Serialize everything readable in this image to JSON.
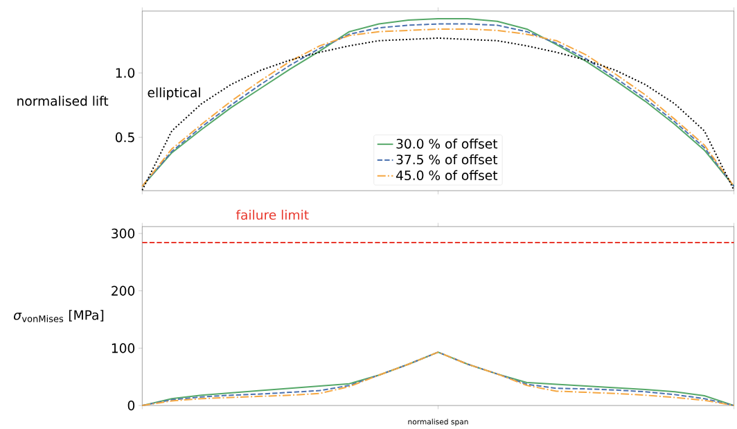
{
  "chart_data": [
    {
      "type": "line",
      "ylabel": "normalised lift",
      "ylim": [
        0.086,
        1.48
      ],
      "yticks": [
        {
          "value": 0.5,
          "label": "0.5"
        },
        {
          "value": 1,
          "label": "1.0"
        }
      ],
      "tick_labels": "y",
      "legend": "bottom",
      "categories": [
        null,
        null,
        null,
        null,
        null,
        null,
        null,
        null,
        null,
        null,
        null,
        null,
        null,
        null,
        null,
        null,
        null,
        null,
        null,
        null,
        null
      ],
      "annotations": [
        "elliptical"
      ],
      "series": [
        {
          "name": "30.0 % of offset",
          "color": "#55a868",
          "line_style": "solid",
          "values": [
            0.12,
            0.38,
            0.56,
            0.73,
            0.88,
            1.03,
            1.17,
            1.32,
            1.38,
            1.41,
            1.42,
            1.42,
            1.4,
            1.34,
            1.22,
            1.09,
            0.94,
            0.78,
            0.6,
            0.4,
            0.12
          ]
        },
        {
          "name": "37.5 % of offset",
          "color": "#4c72b0",
          "line_style": "dashed",
          "values": [
            0.12,
            0.39,
            0.58,
            0.75,
            0.91,
            1.06,
            1.19,
            1.3,
            1.35,
            1.37,
            1.38,
            1.38,
            1.37,
            1.32,
            1.23,
            1.11,
            0.96,
            0.8,
            0.62,
            0.42,
            0.12
          ]
        },
        {
          "name": "45.0 % of offset",
          "color": "#f5a742",
          "line_style": "dashdot",
          "values": [
            0.12,
            0.41,
            0.6,
            0.78,
            0.94,
            1.09,
            1.21,
            1.29,
            1.32,
            1.33,
            1.34,
            1.34,
            1.33,
            1.3,
            1.25,
            1.14,
            0.99,
            0.83,
            0.64,
            0.44,
            0.12
          ]
        },
        {
          "color": "#000000",
          "line_style": "dotted",
          "values": [
            0.09,
            0.55,
            0.76,
            0.91,
            1.02,
            1.1,
            1.16,
            1.21,
            1.25,
            1.26,
            1.27,
            1.26,
            1.25,
            1.21,
            1.16,
            1.1,
            1.02,
            0.91,
            0.76,
            0.55,
            0.09
          ]
        }
      ]
    },
    {
      "type": "line",
      "ylabel": "*σ*$_{vonMises}$ [MPa]",
      "xlabel": "normalised span",
      "ylim": [
        0,
        312
      ],
      "yticks": [
        0,
        100,
        200,
        300
      ],
      "tick_labels": "y",
      "ref_lines": [
        {
          "axis": "y",
          "value": 284,
          "label": "failure limit",
          "color": "#e8372c",
          "line_style": "dashed"
        }
      ],
      "categories": [
        null,
        null,
        null,
        null,
        null,
        null,
        null,
        null,
        null,
        null,
        null,
        null,
        null,
        null,
        null,
        null,
        null,
        null,
        null,
        null,
        null
      ],
      "series": [
        {
          "color": "#55a868",
          "line_style": "solid",
          "values": [
            0,
            12,
            18,
            22,
            26,
            30,
            34,
            38,
            53,
            72,
            93,
            72,
            55,
            40,
            37,
            34,
            31,
            28,
            24,
            17,
            0
          ]
        },
        {
          "color": "#4c72b0",
          "line_style": "dashed",
          "values": [
            0,
            10,
            15,
            18,
            20,
            23,
            26,
            35,
            53,
            72,
            93,
            72,
            55,
            37,
            30,
            29,
            27,
            24,
            19,
            12,
            0
          ]
        },
        {
          "color": "#f5a742",
          "line_style": "dashdot",
          "values": [
            0,
            8,
            12,
            14,
            16,
            18,
            21,
            33,
            53,
            72,
            93,
            72,
            55,
            35,
            25,
            23,
            21,
            18,
            14,
            9,
            0
          ]
        }
      ]
    }
  ]
}
